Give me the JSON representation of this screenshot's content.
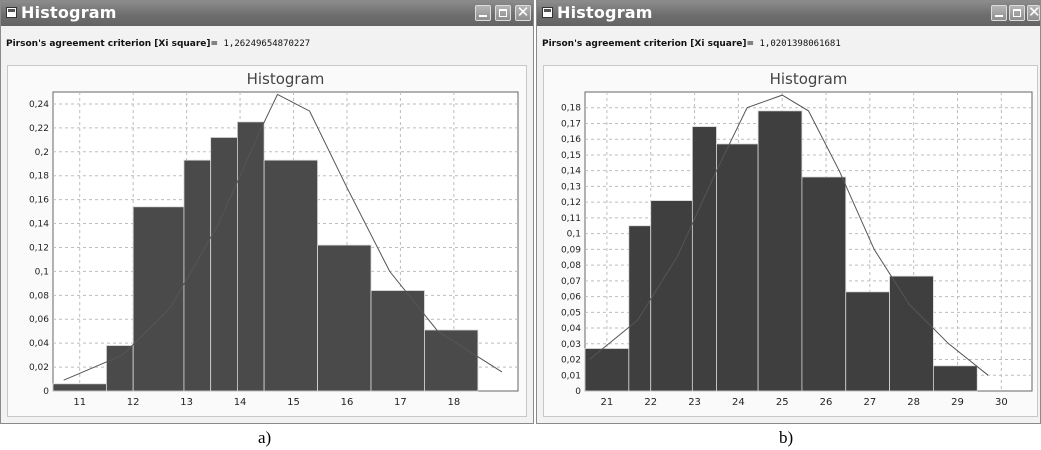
{
  "windows": [
    {
      "title": "Histogram",
      "criterion_label": "Pirson's agreement criterion [Xi square]=",
      "criterion_value": "1,26249654870227",
      "caption": "a)",
      "chart_data": {
        "type": "bar",
        "title": "Histogram",
        "bins": [
          {
            "start": 10.5,
            "end": 11.5,
            "value": 0.006
          },
          {
            "start": 11.5,
            "end": 12.0,
            "value": 0.038
          },
          {
            "start": 12.0,
            "end": 12.95,
            "value": 0.154
          },
          {
            "start": 12.95,
            "end": 13.45,
            "value": 0.193
          },
          {
            "start": 13.45,
            "end": 13.95,
            "value": 0.212
          },
          {
            "start": 13.95,
            "end": 14.45,
            "value": 0.225
          },
          {
            "start": 14.45,
            "end": 15.45,
            "value": 0.193
          },
          {
            "start": 15.45,
            "end": 16.45,
            "value": 0.122
          },
          {
            "start": 16.45,
            "end": 17.45,
            "value": 0.084
          },
          {
            "start": 17.45,
            "end": 18.45,
            "value": 0.051
          },
          {
            "start": 18.45,
            "end": 18.95,
            "value": 0.0
          }
        ],
        "curve": {
          "x": [
            10.7,
            11.8,
            12.7,
            13.6,
            14.4,
            14.7,
            15.3,
            16.0,
            16.8,
            17.7,
            18.4,
            18.9
          ],
          "y": [
            0.009,
            0.03,
            0.07,
            0.14,
            0.22,
            0.248,
            0.234,
            0.17,
            0.1,
            0.05,
            0.03,
            0.016
          ]
        },
        "xlim": [
          10.5,
          19.2
        ],
        "ylim": [
          0,
          0.25
        ],
        "x_ticks": [
          "11",
          "12",
          "13",
          "14",
          "15",
          "16",
          "17",
          "18"
        ],
        "y_ticks": [
          "0",
          "0,02",
          "0,04",
          "0,06",
          "0,08",
          "0,1",
          "0,12",
          "0,14",
          "0,16",
          "0,18",
          "0,2",
          "0,22",
          "0,24"
        ],
        "grid": true,
        "colors": {
          "bar": "#4a4a4a",
          "curve": "#555555",
          "grid": "#bdbdbd"
        }
      }
    },
    {
      "title": "Histogram",
      "criterion_label": "Pirson's agreement criterion [Xi square]=",
      "criterion_value": "1,0201398061681",
      "caption": "b)",
      "chart_data": {
        "type": "bar",
        "title": "Histogram",
        "bins": [
          {
            "start": 20.5,
            "end": 21.5,
            "value": 0.027
          },
          {
            "start": 21.5,
            "end": 22.0,
            "value": 0.105
          },
          {
            "start": 22.0,
            "end": 22.95,
            "value": 0.121
          },
          {
            "start": 22.95,
            "end": 23.5,
            "value": 0.168
          },
          {
            "start": 23.5,
            "end": 24.45,
            "value": 0.157
          },
          {
            "start": 24.45,
            "end": 25.45,
            "value": 0.178
          },
          {
            "start": 25.45,
            "end": 26.45,
            "value": 0.136
          },
          {
            "start": 26.45,
            "end": 27.45,
            "value": 0.063
          },
          {
            "start": 27.45,
            "end": 28.45,
            "value": 0.073
          },
          {
            "start": 28.45,
            "end": 29.45,
            "value": 0.016
          },
          {
            "start": 29.45,
            "end": 30.2,
            "value": 0.0
          }
        ],
        "curve": {
          "x": [
            20.6,
            21.7,
            22.6,
            23.5,
            24.2,
            25.0,
            25.6,
            26.3,
            27.1,
            27.9,
            28.8,
            29.7
          ],
          "y": [
            0.02,
            0.045,
            0.085,
            0.14,
            0.18,
            0.188,
            0.178,
            0.14,
            0.09,
            0.055,
            0.03,
            0.01
          ]
        },
        "xlim": [
          20.5,
          30.7
        ],
        "ylim": [
          0,
          0.19
        ],
        "x_ticks": [
          "21",
          "22",
          "23",
          "24",
          "25",
          "26",
          "27",
          "28",
          "29",
          "30"
        ],
        "y_ticks": [
          "0",
          "0,01",
          "0,02",
          "0,03",
          "0,04",
          "0,05",
          "0,06",
          "0,07",
          "0,08",
          "0,09",
          "0,1",
          "0,11",
          "0,12",
          "0,13",
          "0,14",
          "0,15",
          "0,16",
          "0,17",
          "0,18"
        ],
        "grid": true,
        "colors": {
          "bar": "#3f3f3f",
          "curve": "#555555",
          "grid": "#bdbdbd"
        }
      }
    }
  ]
}
